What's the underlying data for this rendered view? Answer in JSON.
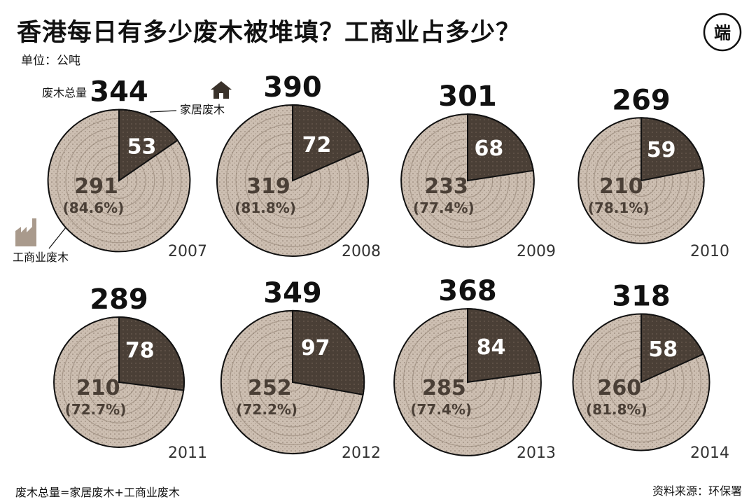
{
  "title": "香港每日有多少废木被堆填？工商业占多少？",
  "unit": "单位：公吨",
  "legend": {
    "total_label": "废木总量",
    "household_label": "家居废木",
    "industrial_label": "工商业废木"
  },
  "footnote": "废木总量=家居废木+工商业废木",
  "source": "资料来源：环保署",
  "logo_text": "端",
  "colors": {
    "household": "#4a3f36",
    "industrial": "#cdbfb2",
    "ring": "#8a7a6b",
    "outline": "#111111"
  },
  "chart_data": {
    "type": "pie",
    "title": "香港每日有多少废木被堆填？工商业占多少？",
    "unit": "公吨",
    "categories": [
      "家居废木",
      "工商业废木"
    ],
    "charts": [
      {
        "year": "2007",
        "total": 344,
        "household": 53,
        "industrial": 291,
        "industrial_pct": "(84.6%)"
      },
      {
        "year": "2008",
        "total": 390,
        "household": 72,
        "industrial": 319,
        "industrial_pct": "(81.8%)"
      },
      {
        "year": "2009",
        "total": 301,
        "household": 68,
        "industrial": 233,
        "industrial_pct": "(77.4%)"
      },
      {
        "year": "2010",
        "total": 269,
        "household": 59,
        "industrial": 210,
        "industrial_pct": "(78.1%)"
      },
      {
        "year": "2011",
        "total": 289,
        "household": 78,
        "industrial": 210,
        "industrial_pct": "(72.7%)"
      },
      {
        "year": "2012",
        "total": 349,
        "household": 97,
        "industrial": 252,
        "industrial_pct": "(72.2%)"
      },
      {
        "year": "2013",
        "total": 368,
        "household": 84,
        "industrial": 285,
        "industrial_pct": "(77.4%)"
      },
      {
        "year": "2014",
        "total": 318,
        "household": 58,
        "industrial": 260,
        "industrial_pct": "(81.8%)"
      }
    ]
  }
}
